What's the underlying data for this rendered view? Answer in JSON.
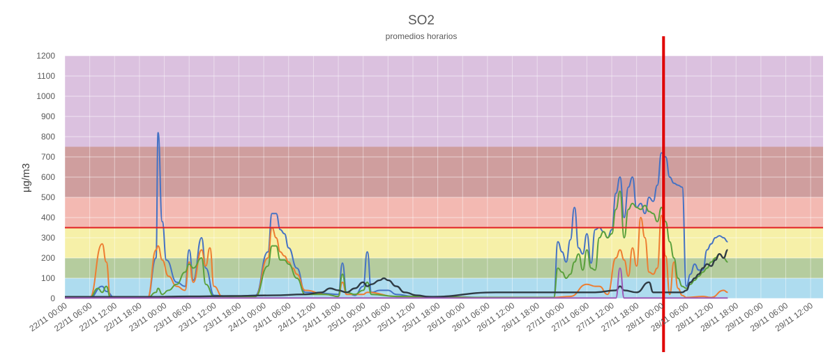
{
  "chart_data": {
    "type": "line",
    "title": "SO2",
    "subtitle": "promedios horarios",
    "ylabel": "µg/m3",
    "xlabel": "",
    "ylim": [
      0,
      1200
    ],
    "yticks": [
      0,
      100,
      200,
      300,
      400,
      500,
      600,
      700,
      800,
      900,
      1000,
      1100,
      1200
    ],
    "x_tick_labels": [
      "22/11 00:00",
      "22/11 06:00",
      "22/11 12:00",
      "22/11 18:00",
      "23/11 00:00",
      "23/11 06:00",
      "23/11 12:00",
      "23/11 18:00",
      "24/11 00:00",
      "24/11 06:00",
      "24/11 12:00",
      "24/11 18:00",
      "25/11 00:00",
      "25/11 06:00",
      "25/11 12:00",
      "25/11 18:00",
      "26/11 00:00",
      "26/11 06:00",
      "26/11 12:00",
      "26/11 18:00",
      "27/11 00:00",
      "27/11 06:00",
      "27/11 12:00",
      "27/11 18:00",
      "28/11 00:00",
      "28/11 06:00",
      "28/11 12:00",
      "28/11 18:00",
      "29/11 00:00",
      "29/11 06:00",
      "29/11 12:00"
    ],
    "grid": true,
    "legend": "none",
    "bands": [
      {
        "from": 0,
        "to": 100,
        "color": "#aedcef"
      },
      {
        "from": 100,
        "to": 200,
        "color": "#b5cc9e"
      },
      {
        "from": 200,
        "to": 350,
        "color": "#f6f0a8"
      },
      {
        "from": 350,
        "to": 500,
        "color": "#f3b9b2"
      },
      {
        "from": 500,
        "to": 750,
        "color": "#cf9e9e"
      },
      {
        "from": 750,
        "to": 1200,
        "color": "#dbc1df"
      }
    ],
    "threshold_line": {
      "value": 350,
      "color": "#e02020"
    },
    "vertical_marker": {
      "x": 144.5,
      "color": "#e00000"
    },
    "series": [
      {
        "color": "#4472c4",
        "points": [
          [
            0,
            2
          ],
          [
            6,
            3
          ],
          [
            9,
            60
          ],
          [
            10,
            35
          ],
          [
            12,
            4
          ],
          [
            20,
            5
          ],
          [
            22,
            200
          ],
          [
            22.5,
            820
          ],
          [
            23.5,
            380
          ],
          [
            24.5,
            190
          ],
          [
            27,
            80
          ],
          [
            29,
            60
          ],
          [
            30,
            240
          ],
          [
            31,
            90
          ],
          [
            33,
            300
          ],
          [
            34,
            150
          ],
          [
            36,
            15
          ],
          [
            40,
            10
          ],
          [
            46,
            15
          ],
          [
            49,
            230
          ],
          [
            50,
            420
          ],
          [
            51,
            420
          ],
          [
            52,
            340
          ],
          [
            53,
            320
          ],
          [
            54,
            250
          ],
          [
            56,
            150
          ],
          [
            58,
            30
          ],
          [
            62,
            25
          ],
          [
            66,
            20
          ],
          [
            67,
            175
          ],
          [
            68,
            30
          ],
          [
            70,
            15
          ],
          [
            72,
            60
          ],
          [
            73,
            230
          ],
          [
            74,
            30
          ],
          [
            76,
            40
          ],
          [
            78,
            40
          ],
          [
            80,
            20
          ],
          [
            84,
            10
          ],
          [
            104,
            5
          ],
          [
            118,
            5
          ],
          [
            119,
            280
          ],
          [
            120,
            230
          ],
          [
            121,
            180
          ],
          [
            122,
            290
          ],
          [
            123,
            450
          ],
          [
            124,
            250
          ],
          [
            125,
            220
          ],
          [
            126,
            320
          ],
          [
            127,
            175
          ],
          [
            128,
            340
          ],
          [
            129,
            350
          ],
          [
            130,
            330
          ],
          [
            131,
            300
          ],
          [
            132,
            340
          ],
          [
            133,
            520
          ],
          [
            134,
            600
          ],
          [
            135,
            400
          ],
          [
            136,
            550
          ],
          [
            137,
            600
          ],
          [
            138,
            450
          ],
          [
            139,
            470
          ],
          [
            140,
            420
          ],
          [
            141,
            500
          ],
          [
            142,
            480
          ],
          [
            143,
            560
          ],
          [
            144,
            720
          ],
          [
            145,
            700
          ],
          [
            146,
            600
          ],
          [
            147,
            570
          ],
          [
            148,
            560
          ],
          [
            149,
            550
          ],
          [
            150,
            60
          ],
          [
            151,
            120
          ],
          [
            152,
            170
          ],
          [
            153,
            140
          ],
          [
            154,
            140
          ],
          [
            155,
            240
          ],
          [
            156,
            270
          ],
          [
            157,
            300
          ],
          [
            158,
            310
          ],
          [
            159,
            300
          ],
          [
            160,
            280
          ]
        ]
      },
      {
        "color": "#ed7d31",
        "points": [
          [
            0,
            2
          ],
          [
            6,
            3
          ],
          [
            9,
            270
          ],
          [
            10,
            180
          ],
          [
            11,
            5
          ],
          [
            20,
            5
          ],
          [
            22,
            240
          ],
          [
            22.5,
            260
          ],
          [
            23.5,
            190
          ],
          [
            25,
            110
          ],
          [
            27,
            60
          ],
          [
            29,
            40
          ],
          [
            30,
            180
          ],
          [
            31,
            80
          ],
          [
            33,
            240
          ],
          [
            34,
            160
          ],
          [
            35,
            250
          ],
          [
            36,
            60
          ],
          [
            38,
            10
          ],
          [
            46,
            10
          ],
          [
            49,
            200
          ],
          [
            50,
            350
          ],
          [
            51,
            300
          ],
          [
            52,
            230
          ],
          [
            53,
            210
          ],
          [
            54,
            180
          ],
          [
            55,
            150
          ],
          [
            56,
            120
          ],
          [
            58,
            40
          ],
          [
            63,
            20
          ],
          [
            66,
            10
          ],
          [
            67,
            80
          ],
          [
            68,
            20
          ],
          [
            72,
            20
          ],
          [
            73,
            30
          ],
          [
            80,
            10
          ],
          [
            104,
            5
          ],
          [
            118,
            5
          ],
          [
            122,
            10
          ],
          [
            126,
            70
          ],
          [
            128,
            60
          ],
          [
            129,
            60
          ],
          [
            131,
            20
          ],
          [
            133,
            200
          ],
          [
            134,
            240
          ],
          [
            135,
            190
          ],
          [
            136,
            110
          ],
          [
            137,
            250
          ],
          [
            138,
            160
          ],
          [
            139,
            400
          ],
          [
            140,
            300
          ],
          [
            141,
            130
          ],
          [
            142,
            120
          ],
          [
            143,
            150
          ],
          [
            144,
            410
          ],
          [
            145,
            210
          ],
          [
            146,
            20
          ],
          [
            147,
            180
          ],
          [
            148,
            50
          ],
          [
            149,
            15
          ],
          [
            150,
            5
          ],
          [
            154,
            10
          ],
          [
            156,
            5
          ],
          [
            159,
            40
          ],
          [
            160,
            30
          ]
        ]
      },
      {
        "color": "#5aa03c",
        "points": [
          [
            0,
            2
          ],
          [
            6,
            3
          ],
          [
            8,
            50
          ],
          [
            9,
            30
          ],
          [
            10,
            60
          ],
          [
            11,
            5
          ],
          [
            20,
            5
          ],
          [
            22,
            30
          ],
          [
            22.5,
            50
          ],
          [
            23.5,
            20
          ],
          [
            25,
            40
          ],
          [
            27,
            70
          ],
          [
            29,
            130
          ],
          [
            30,
            170
          ],
          [
            31,
            150
          ],
          [
            33,
            200
          ],
          [
            34,
            70
          ],
          [
            36,
            10
          ],
          [
            46,
            10
          ],
          [
            49,
            160
          ],
          [
            50,
            260
          ],
          [
            51,
            260
          ],
          [
            52,
            190
          ],
          [
            53,
            190
          ],
          [
            54,
            170
          ],
          [
            56,
            100
          ],
          [
            58,
            20
          ],
          [
            63,
            20
          ],
          [
            66,
            10
          ],
          [
            67,
            120
          ],
          [
            68,
            30
          ],
          [
            70,
            20
          ],
          [
            72,
            40
          ],
          [
            73,
            80
          ],
          [
            74,
            20
          ],
          [
            80,
            10
          ],
          [
            104,
            5
          ],
          [
            118,
            5
          ],
          [
            119,
            150
          ],
          [
            120,
            130
          ],
          [
            121,
            100
          ],
          [
            122,
            120
          ],
          [
            123,
            180
          ],
          [
            124,
            220
          ],
          [
            125,
            140
          ],
          [
            126,
            240
          ],
          [
            127,
            150
          ],
          [
            128,
            140
          ],
          [
            129,
            300
          ],
          [
            130,
            330
          ],
          [
            131,
            300
          ],
          [
            132,
            320
          ],
          [
            133,
            440
          ],
          [
            134,
            530
          ],
          [
            135,
            300
          ],
          [
            136,
            440
          ],
          [
            137,
            470
          ],
          [
            138,
            450
          ],
          [
            139,
            440
          ],
          [
            140,
            460
          ],
          [
            141,
            430
          ],
          [
            142,
            420
          ],
          [
            143,
            380
          ],
          [
            144,
            450
          ],
          [
            145,
            380
          ],
          [
            146,
            280
          ],
          [
            147,
            200
          ],
          [
            148,
            100
          ],
          [
            149,
            60
          ],
          [
            150,
            50
          ],
          [
            151,
            70
          ],
          [
            152,
            90
          ],
          [
            153,
            110
          ],
          [
            154,
            130
          ],
          [
            155,
            150
          ],
          [
            156,
            180
          ],
          [
            157,
            200
          ],
          [
            158,
            220
          ],
          [
            159,
            200
          ],
          [
            160,
            180
          ]
        ]
      },
      {
        "color": "#2f3b44",
        "points": [
          [
            0,
            8
          ],
          [
            10,
            8
          ],
          [
            20,
            8
          ],
          [
            30,
            10
          ],
          [
            40,
            12
          ],
          [
            50,
            15
          ],
          [
            58,
            20
          ],
          [
            62,
            30
          ],
          [
            64,
            50
          ],
          [
            66,
            40
          ],
          [
            68,
            30
          ],
          [
            70,
            50
          ],
          [
            72,
            80
          ],
          [
            73,
            60
          ],
          [
            74,
            70
          ],
          [
            76,
            90
          ],
          [
            77,
            100
          ],
          [
            78,
            90
          ],
          [
            80,
            60
          ],
          [
            82,
            30
          ],
          [
            85,
            15
          ],
          [
            88,
            8
          ],
          [
            104,
            30
          ],
          [
            118,
            30
          ],
          [
            128,
            30
          ],
          [
            133,
            40
          ],
          [
            134,
            60
          ],
          [
            135,
            40
          ],
          [
            138,
            30
          ],
          [
            141,
            80
          ],
          [
            142,
            30
          ],
          [
            149,
            30
          ],
          [
            150,
            40
          ],
          [
            151,
            80
          ],
          [
            152,
            100
          ],
          [
            153,
            120
          ],
          [
            154,
            150
          ],
          [
            155,
            170
          ],
          [
            156,
            160
          ],
          [
            157,
            190
          ],
          [
            158,
            220
          ],
          [
            159,
            200
          ],
          [
            160,
            240
          ]
        ]
      },
      {
        "color": "#9b59b6",
        "points": [
          [
            0,
            2
          ],
          [
            40,
            2
          ],
          [
            104,
            2
          ],
          [
            118,
            2
          ],
          [
            133,
            2
          ],
          [
            134,
            150
          ],
          [
            135,
            2
          ],
          [
            160,
            2
          ]
        ]
      }
    ]
  }
}
